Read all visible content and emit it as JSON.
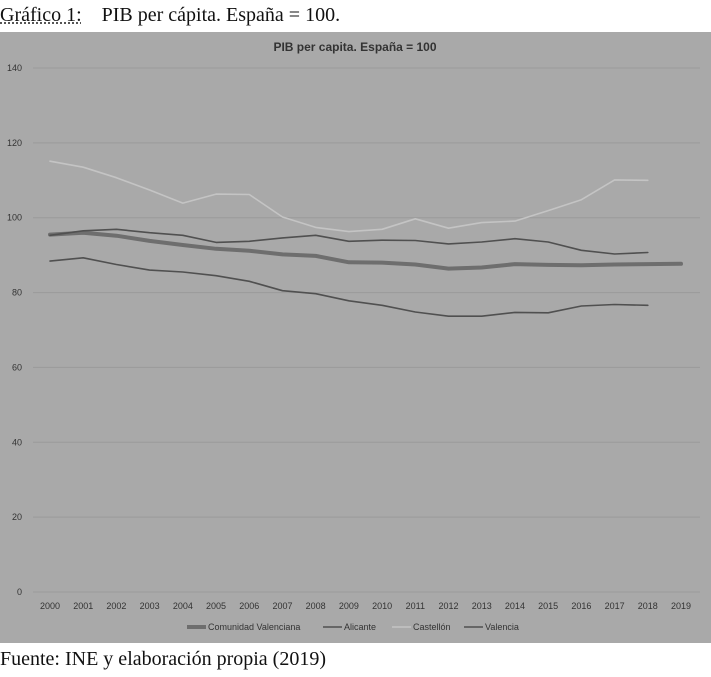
{
  "document": {
    "figure_label": "Gráfico 1:",
    "figure_title": "PIB per cápita. España = 100.",
    "source_text": "Fuente: INE y elaboración propia (2019)"
  },
  "colors": {
    "panel_bg": "#a9a9a9",
    "grid": "#9a9a9a",
    "text": "#333333",
    "series": [
      "#6e6e6e",
      "#505050",
      "#c4c4c4",
      "#505050"
    ]
  },
  "chart_data": {
    "type": "line",
    "title": "PIB per capita. España = 100",
    "xlabel": "",
    "ylabel": "",
    "ylim": [
      0,
      140
    ],
    "yticks": [
      0,
      20,
      40,
      60,
      80,
      100,
      120,
      140
    ],
    "grid": true,
    "legend_position": "bottom",
    "categories": [
      "2000",
      "2001",
      "2002",
      "2003",
      "2004",
      "2005",
      "2006",
      "2007",
      "2008",
      "2009",
      "2010",
      "2011",
      "2012",
      "2013",
      "2014",
      "2015",
      "2016",
      "2017",
      "2018",
      "2019"
    ],
    "series": [
      {
        "name": "Comunidad Valenciana",
        "values": [
          95.5,
          96.0,
          95.2,
          93.8,
          92.7,
          91.7,
          91.2,
          90.2,
          89.8,
          88.1,
          88.0,
          87.5,
          86.4,
          86.7,
          87.6,
          87.4,
          87.3,
          87.5,
          87.6,
          87.7
        ]
      },
      {
        "name": "Alicante",
        "values": [
          88.4,
          89.3,
          87.5,
          86.0,
          85.5,
          84.5,
          83.0,
          80.5,
          79.7,
          77.8,
          76.6,
          74.8,
          73.7,
          73.7,
          74.7,
          74.6,
          76.4,
          76.8,
          76.6,
          null
        ]
      },
      {
        "name": "Castellón",
        "values": [
          115.1,
          113.5,
          110.7,
          107.4,
          103.9,
          106.3,
          106.2,
          100.2,
          97.4,
          96.3,
          96.9,
          99.7,
          97.2,
          98.7,
          99.1,
          101.9,
          104.8,
          110.1,
          110.0,
          null
        ]
      },
      {
        "name": "Valencia",
        "values": [
          95.3,
          96.5,
          96.9,
          96.0,
          95.3,
          93.4,
          93.7,
          94.6,
          95.3,
          93.7,
          94.0,
          93.9,
          93.0,
          93.5,
          94.4,
          93.5,
          91.3,
          90.3,
          90.7,
          null
        ]
      }
    ]
  }
}
